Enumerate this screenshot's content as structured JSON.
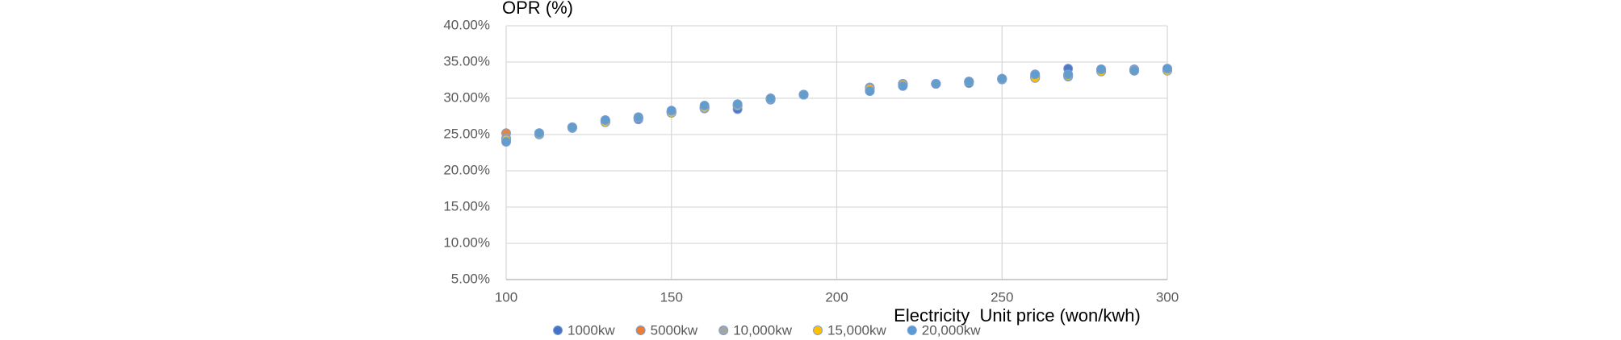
{
  "chart_data": {
    "type": "scatter",
    "xlabel": "Electricity  Unit price (won/kwh)",
    "ylabel": "OPR (%)",
    "x": [
      100,
      110,
      120,
      130,
      140,
      150,
      160,
      170,
      180,
      190,
      210,
      220,
      230,
      240,
      250,
      260,
      270,
      280,
      290,
      300
    ],
    "series": [
      {
        "name": "1000kw",
        "color": "#4472c4",
        "values": [
          24.2,
          25.2,
          25.9,
          26.9,
          27.1,
          28.2,
          28.6,
          28.5,
          29.8,
          30.5,
          31.0,
          31.8,
          32.0,
          32.1,
          32.6,
          33.0,
          34.1,
          34.0,
          34.0,
          34.0
        ]
      },
      {
        "name": "5000kw",
        "color": "#ed7d31",
        "values": [
          25.2,
          25.1,
          26.0,
          26.8,
          27.3,
          28.0,
          28.7,
          29.0,
          29.9,
          30.5,
          31.5,
          32.0,
          32.0,
          32.3,
          32.7,
          33.0,
          33.0,
          33.8,
          33.9,
          34.0
        ]
      },
      {
        "name": "10,000kw",
        "color": "#a5a5a5",
        "values": [
          24.5,
          25.1,
          26.0,
          26.8,
          27.3,
          28.1,
          28.8,
          29.0,
          29.9,
          30.5,
          31.4,
          32.0,
          32.0,
          32.3,
          32.7,
          32.9,
          33.2,
          33.8,
          33.9,
          34.0
        ]
      },
      {
        "name": "15,000kw",
        "color": "#ffc000",
        "values": [
          24.3,
          25.0,
          26.0,
          26.7,
          27.3,
          28.0,
          28.7,
          29.0,
          29.9,
          30.5,
          31.3,
          31.9,
          32.0,
          32.3,
          32.7,
          32.8,
          33.1,
          33.7,
          33.8,
          33.8
        ]
      },
      {
        "name": "20,000kw",
        "color": "#5b9bd5",
        "values": [
          24.0,
          25.2,
          26.0,
          27.0,
          27.4,
          28.3,
          29.0,
          29.2,
          30.0,
          30.5,
          31.0,
          31.7,
          32.0,
          32.3,
          32.7,
          33.3,
          33.3,
          34.0,
          33.8,
          34.1
        ]
      }
    ],
    "xlim": [
      100,
      300
    ],
    "xticks": [
      100,
      150,
      200,
      250,
      300
    ],
    "ylim": [
      5,
      40
    ],
    "yticks": [
      {
        "value": 5,
        "label": "5.00%"
      },
      {
        "value": 10,
        "label": "10.00%"
      },
      {
        "value": 15,
        "label": "15.00%"
      },
      {
        "value": 20,
        "label": "20.00%"
      },
      {
        "value": 25,
        "label": "25.00%"
      },
      {
        "value": 30,
        "label": "30.00%"
      },
      {
        "value": 35,
        "label": "35.00%"
      },
      {
        "value": 40,
        "label": "40.00%"
      }
    ],
    "grid": true
  }
}
